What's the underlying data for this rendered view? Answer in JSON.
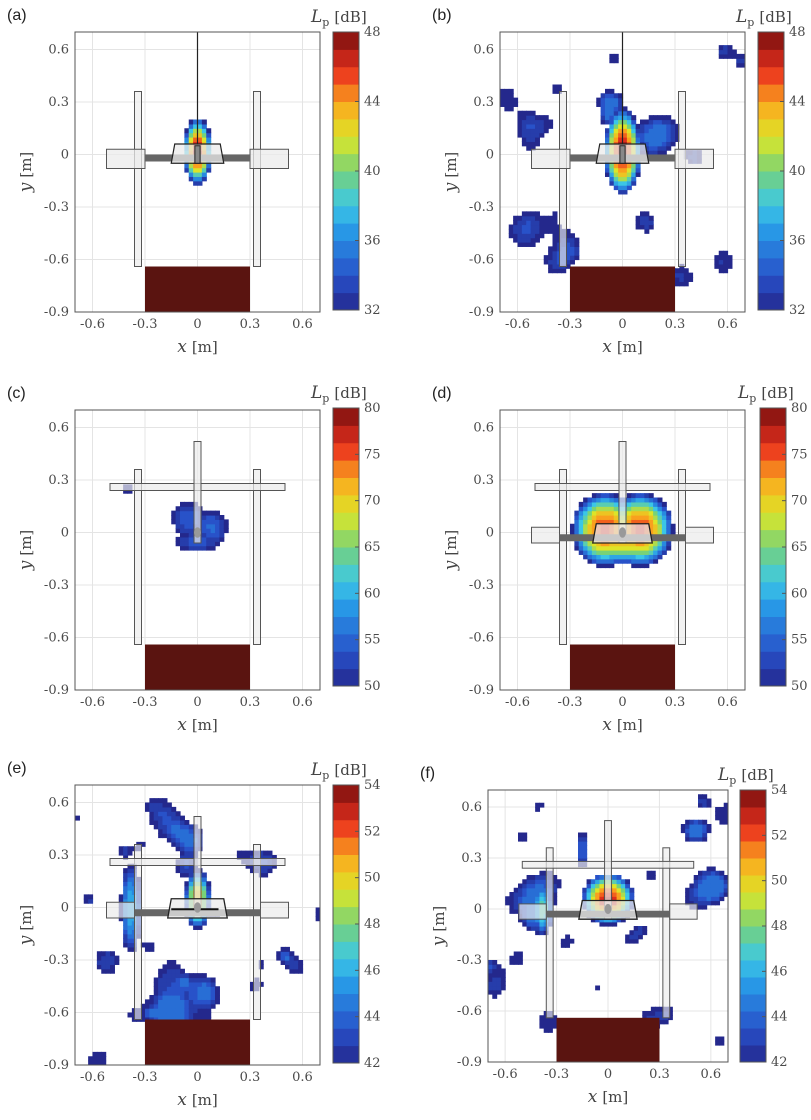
{
  "chart_data": [
    {
      "type": "heatmap",
      "panel_label": "(a)",
      "xlabel": "x [m]",
      "ylabel": "y [m]",
      "xlim": [
        -0.7,
        0.7
      ],
      "ylim": [
        -0.9,
        0.7
      ],
      "xticks": [
        "-0.6",
        "-0.3",
        "0",
        "0.3",
        "0.6"
      ],
      "yticks": [
        "0.6",
        "0.3",
        "0",
        "-0.3",
        "-0.6",
        "-0.9"
      ],
      "colorbar": {
        "label": "Lp [dB]",
        "min": 32,
        "max": 48,
        "ticks": [
          "48",
          "44",
          "40",
          "36",
          "32"
        ]
      },
      "sources": [
        {
          "x": 0.0,
          "y": 0.02,
          "sx": 0.05,
          "sy": 0.12,
          "peak": 47.5
        }
      ],
      "floor_level": 29,
      "model": "rotor-small"
    },
    {
      "type": "heatmap",
      "panel_label": "(b)",
      "xlabel": "x [m]",
      "ylabel": "y [m]",
      "xlim": [
        -0.7,
        0.7
      ],
      "ylim": [
        -0.9,
        0.7
      ],
      "xticks": [
        "-0.6",
        "-0.3",
        "0",
        "0.3",
        "0.6"
      ],
      "yticks": [
        "0.6",
        "0.3",
        "0",
        "-0.3",
        "-0.6",
        "-0.9"
      ],
      "colorbar": {
        "label": "Lp [dB]",
        "min": 32,
        "max": 48,
        "ticks": [
          "48",
          "44",
          "40",
          "36",
          "32"
        ]
      },
      "sources": [
        {
          "x": 0.0,
          "y": 0.02,
          "sx": 0.065,
          "sy": 0.15,
          "peak": 48
        }
      ],
      "noise": {
        "amp": 5.2,
        "base": 31.0,
        "seed": 7
      },
      "floor_level": 29,
      "model": "rotor-small"
    },
    {
      "type": "heatmap",
      "panel_label": "(c)",
      "xlabel": "x [m]",
      "ylabel": "y [m]",
      "xlim": [
        -0.7,
        0.7
      ],
      "ylim": [
        -0.9,
        0.7
      ],
      "xticks": [
        "-0.6",
        "-0.3",
        "0",
        "0.3",
        "0.6"
      ],
      "yticks": [
        "0.6",
        "0.3",
        "0",
        "-0.3",
        "-0.6",
        "-0.9"
      ],
      "colorbar": {
        "label": "Lp [dB]",
        "min": 50,
        "max": 80,
        "ticks": [
          "80",
          "75",
          "70",
          "65",
          "60",
          "55",
          "50"
        ]
      },
      "sources": [
        {
          "x": -0.05,
          "y": 0.08,
          "sx": 0.1,
          "sy": 0.1,
          "peak": 55.5
        },
        {
          "x": 0.08,
          "y": 0.03,
          "sx": 0.09,
          "sy": 0.1,
          "peak": 56
        },
        {
          "x": 0.0,
          "y": -0.05,
          "sx": 0.14,
          "sy": 0.06,
          "peak": 55
        },
        {
          "x": -0.4,
          "y": 0.25,
          "sx": 0.04,
          "sy": 0.05,
          "peak": 52
        }
      ],
      "floor_level": 45,
      "model": "rotor-large"
    },
    {
      "type": "heatmap",
      "panel_label": "(d)",
      "xlabel": "x [m]",
      "ylabel": "y [m]",
      "xlim": [
        -0.7,
        0.7
      ],
      "ylim": [
        -0.9,
        0.7
      ],
      "xticks": [
        "-0.6",
        "-0.3",
        "0",
        "0.3",
        "0.6"
      ],
      "yticks": [
        "0.6",
        "0.3",
        "0",
        "-0.3",
        "-0.6",
        "-0.9"
      ],
      "colorbar": {
        "label": "Lp [dB]",
        "min": 50,
        "max": 80,
        "ticks": [
          "80",
          "75",
          "70",
          "65",
          "60",
          "55",
          "50"
        ]
      },
      "sources": [
        {
          "x": -0.1,
          "y": 0.02,
          "sx": 0.09,
          "sy": 0.1,
          "peak": 77
        },
        {
          "x": 0.1,
          "y": 0.02,
          "sx": 0.09,
          "sy": 0.1,
          "peak": 77
        },
        {
          "x": 0.0,
          "y": -0.02,
          "sx": 0.13,
          "sy": 0.08,
          "peak": 74
        }
      ],
      "floor_level": 45,
      "model": "rotor-large"
    },
    {
      "type": "heatmap",
      "panel_label": "(e)",
      "xlabel": "x [m]",
      "ylabel": "y [m]",
      "xlim": [
        -0.7,
        0.7
      ],
      "ylim": [
        -0.9,
        0.7
      ],
      "xticks": [
        "-0.6",
        "-0.3",
        "0",
        "0.3",
        "0.6"
      ],
      "yticks": [
        "0.6",
        "0.3",
        "0",
        "-0.3",
        "-0.6",
        "-0.9"
      ],
      "colorbar": {
        "label": "Lp [dB]",
        "min": 42,
        "max": 54,
        "ticks": [
          "54",
          "52",
          "50",
          "48",
          "46",
          "44",
          "42"
        ]
      },
      "sources": [
        {
          "x": 0.0,
          "y": 0.05,
          "sx": 0.06,
          "sy": 0.14,
          "peak": 51
        },
        {
          "x": -0.38,
          "y": 0.0,
          "sx": 0.07,
          "sy": 0.3,
          "peak": 46.5
        },
        {
          "x": -0.25,
          "y": -0.6,
          "sx": 0.1,
          "sy": 0.06,
          "peak": 45
        }
      ],
      "noise": {
        "amp": 4.6,
        "base": 41.6,
        "seed": 13
      },
      "floor_level": 38,
      "model": "rotor-large-bar"
    },
    {
      "type": "heatmap",
      "panel_label": "(f)",
      "xlabel": "x [m]",
      "ylabel": "y [m]",
      "xlim": [
        -0.7,
        0.7
      ],
      "ylim": [
        -0.9,
        0.7
      ],
      "xticks": [
        "-0.6",
        "-0.3",
        "0",
        "0.3",
        "0.6"
      ],
      "yticks": [
        "0.6",
        "0.3",
        "0",
        "-0.3",
        "-0.6",
        "-0.9"
      ],
      "colorbar": {
        "label": "Lp [dB]",
        "min": 42,
        "max": 54,
        "ticks": [
          "54",
          "52",
          "50",
          "48",
          "46",
          "44",
          "42"
        ]
      },
      "sources": [
        {
          "x": 0.0,
          "y": 0.06,
          "sx": 0.11,
          "sy": 0.11,
          "peak": 53.5
        },
        {
          "x": -0.38,
          "y": 0.0,
          "sx": 0.06,
          "sy": 0.15,
          "peak": 48
        },
        {
          "x": -0.15,
          "y": 0.35,
          "sx": 0.05,
          "sy": 0.15,
          "peak": 44.5
        }
      ],
      "noise": {
        "amp": 4.2,
        "base": 41.5,
        "seed": 21
      },
      "floor_level": 38,
      "model": "rotor-large"
    }
  ]
}
